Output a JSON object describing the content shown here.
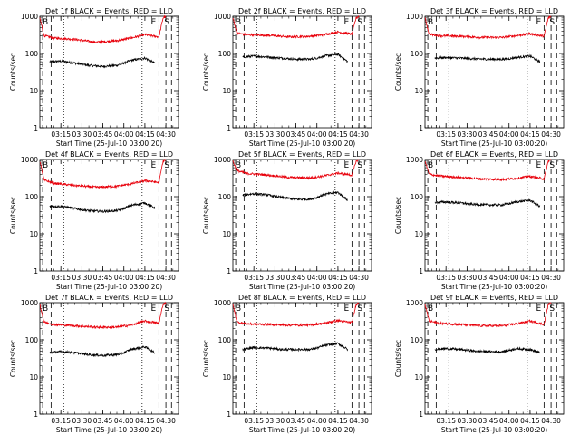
{
  "figure": {
    "ylabel": "Counts/sec",
    "xlabel": "Start Time (25-Jul-10 03:00:20)",
    "series_colors": {
      "events": "#000000",
      "lld": "#e8000b"
    },
    "marker_labels": [
      "B",
      "E",
      "S"
    ]
  },
  "chart_data": [
    {
      "type": "line",
      "title": "Det 1f BLACK = Events, RED = LLD",
      "xlabel": "Start Time (25-Jul-10 03:00:20)",
      "ylabel": "Counts/sec",
      "yscale": "log",
      "ylim": [
        1,
        1000
      ],
      "xlim": [
        "03:00",
        "04:39"
      ],
      "x_ticks": [
        "03:15",
        "03:30",
        "03:45",
        "04:00",
        "04:15",
        "04:30"
      ],
      "y_ticks": [
        "1",
        "10",
        "100",
        "1000"
      ],
      "series": [
        {
          "name": "Events",
          "color": "#000000",
          "x": [
            "03:07",
            "03:15",
            "03:25",
            "03:35",
            "03:45",
            "03:55",
            "04:00",
            "04:05",
            "04:15",
            "04:22"
          ],
          "values": [
            60,
            62,
            55,
            48,
            45,
            48,
            55,
            65,
            75,
            55
          ]
        },
        {
          "name": "LLD",
          "color": "#e8000b",
          "x": [
            "03:00",
            "03:03",
            "03:10",
            "03:25",
            "03:40",
            "03:55",
            "04:05",
            "04:15",
            "04:25",
            "04:28",
            "04:30"
          ],
          "values": [
            900,
            300,
            260,
            240,
            200,
            220,
            260,
            320,
            280,
            900,
            1000
          ]
        }
      ],
      "vlines_dashed": [
        "03:02",
        "03:08",
        "04:25",
        "04:30",
        "04:34"
      ],
      "vlines_dotted": [
        "03:17",
        "04:13"
      ]
    },
    {
      "type": "line",
      "title": "Det 2f BLACK = Events, RED = LLD",
      "xlabel": "Start Time (25-Jul-10 03:00:20)",
      "ylabel": "Counts/sec",
      "yscale": "log",
      "ylim": [
        1,
        1000
      ],
      "xlim": [
        "03:00",
        "04:39"
      ],
      "x_ticks": [
        "03:15",
        "03:30",
        "03:45",
        "04:00",
        "04:15",
        "04:30"
      ],
      "y_ticks": [
        "1",
        "10",
        "100",
        "1000"
      ],
      "series": [
        {
          "name": "Events",
          "color": "#000000",
          "x": [
            "03:07",
            "03:15",
            "03:25",
            "03:35",
            "03:45",
            "03:55",
            "04:00",
            "04:05",
            "04:15",
            "04:22"
          ],
          "values": [
            80,
            85,
            80,
            75,
            70,
            70,
            75,
            85,
            95,
            60
          ]
        },
        {
          "name": "LLD",
          "color": "#e8000b",
          "x": [
            "03:00",
            "03:03",
            "03:10",
            "03:25",
            "03:40",
            "03:55",
            "04:05",
            "04:15",
            "04:25",
            "04:28",
            "04:30"
          ],
          "values": [
            900,
            350,
            320,
            310,
            280,
            290,
            320,
            380,
            330,
            900,
            1000
          ]
        }
      ],
      "vlines_dashed": [
        "03:02",
        "03:08",
        "04:25",
        "04:30",
        "04:34"
      ],
      "vlines_dotted": [
        "03:17",
        "04:13"
      ]
    },
    {
      "type": "line",
      "title": "Det 3f BLACK = Events, RED = LLD",
      "xlabel": "Start Time (25-Jul-10 03:00:20)",
      "ylabel": "Counts/sec",
      "yscale": "log",
      "ylim": [
        1,
        1000
      ],
      "xlim": [
        "03:00",
        "04:39"
      ],
      "x_ticks": [
        "03:15",
        "03:30",
        "03:45",
        "04:00",
        "04:15",
        "04:30"
      ],
      "y_ticks": [
        "1",
        "10",
        "100",
        "1000"
      ],
      "series": [
        {
          "name": "Events",
          "color": "#000000",
          "x": [
            "03:07",
            "03:15",
            "03:25",
            "03:35",
            "03:45",
            "03:55",
            "04:00",
            "04:05",
            "04:15",
            "04:22"
          ],
          "values": [
            75,
            78,
            75,
            72,
            70,
            70,
            72,
            78,
            85,
            60
          ]
        },
        {
          "name": "LLD",
          "color": "#e8000b",
          "x": [
            "03:00",
            "03:03",
            "03:10",
            "03:25",
            "03:40",
            "03:55",
            "04:05",
            "04:15",
            "04:25",
            "04:28",
            "04:30"
          ],
          "values": [
            900,
            330,
            300,
            290,
            270,
            270,
            300,
            340,
            290,
            900,
            1000
          ]
        }
      ],
      "vlines_dashed": [
        "03:02",
        "03:08",
        "04:25",
        "04:30",
        "04:34"
      ],
      "vlines_dotted": [
        "03:17",
        "04:13"
      ]
    },
    {
      "type": "line",
      "title": "Det 4f BLACK = Events, RED = LLD",
      "xlabel": "Start Time (25-Jul-10 03:00:20)",
      "ylabel": "Counts/sec",
      "yscale": "log",
      "ylim": [
        1,
        1000
      ],
      "xlim": [
        "03:00",
        "04:39"
      ],
      "x_ticks": [
        "03:15",
        "03:30",
        "03:45",
        "04:00",
        "04:15",
        "04:30"
      ],
      "y_ticks": [
        "1",
        "10",
        "100",
        "1000"
      ],
      "series": [
        {
          "name": "Events",
          "color": "#000000",
          "x": [
            "03:07",
            "03:15",
            "03:25",
            "03:35",
            "03:45",
            "03:55",
            "04:00",
            "04:05",
            "04:15",
            "04:22"
          ],
          "values": [
            55,
            55,
            48,
            42,
            40,
            42,
            48,
            58,
            68,
            50
          ]
        },
        {
          "name": "LLD",
          "color": "#e8000b",
          "x": [
            "03:00",
            "03:03",
            "03:10",
            "03:25",
            "03:40",
            "03:55",
            "04:05",
            "04:15",
            "04:25",
            "04:28",
            "04:30"
          ],
          "values": [
            900,
            280,
            230,
            200,
            180,
            190,
            220,
            270,
            240,
            900,
            1000
          ]
        }
      ],
      "vlines_dashed": [
        "03:02",
        "03:08",
        "04:25",
        "04:30",
        "04:34"
      ],
      "vlines_dotted": [
        "03:17",
        "04:13"
      ]
    },
    {
      "type": "line",
      "title": "Det 5f BLACK = Events, RED = LLD",
      "xlabel": "Start Time (25-Jul-10 03:00:20)",
      "ylabel": "Counts/sec",
      "yscale": "log",
      "ylim": [
        1,
        1000
      ],
      "xlim": [
        "03:00",
        "04:39"
      ],
      "x_ticks": [
        "03:15",
        "03:30",
        "03:45",
        "04:00",
        "04:15",
        "04:30"
      ],
      "y_ticks": [
        "1",
        "10",
        "100",
        "1000"
      ],
      "series": [
        {
          "name": "Events",
          "color": "#000000",
          "x": [
            "03:07",
            "03:15",
            "03:25",
            "03:35",
            "03:45",
            "03:55",
            "04:00",
            "04:05",
            "04:15",
            "04:22"
          ],
          "values": [
            110,
            120,
            110,
            95,
            85,
            85,
            95,
            115,
            130,
            80
          ]
        },
        {
          "name": "LLD",
          "color": "#e8000b",
          "x": [
            "03:00",
            "03:03",
            "03:10",
            "03:25",
            "03:40",
            "03:55",
            "04:05",
            "04:15",
            "04:25",
            "04:28",
            "04:30"
          ],
          "values": [
            900,
            500,
            420,
            380,
            330,
            320,
            360,
            430,
            380,
            900,
            1000
          ]
        }
      ],
      "vlines_dashed": [
        "03:02",
        "03:08",
        "04:25",
        "04:30",
        "04:34"
      ],
      "vlines_dotted": [
        "03:17",
        "04:13"
      ]
    },
    {
      "type": "line",
      "title": "Det 6f BLACK = Events, RED = LLD",
      "xlabel": "Start Time (25-Jul-10 03:00:20)",
      "ylabel": "Counts/sec",
      "yscale": "log",
      "ylim": [
        1,
        1000
      ],
      "xlim": [
        "03:00",
        "04:39"
      ],
      "x_ticks": [
        "03:15",
        "03:30",
        "03:45",
        "04:00",
        "04:15",
        "04:30"
      ],
      "y_ticks": [
        "1",
        "10",
        "100",
        "1000"
      ],
      "series": [
        {
          "name": "Events",
          "color": "#000000",
          "x": [
            "03:07",
            "03:15",
            "03:25",
            "03:35",
            "03:45",
            "03:55",
            "04:00",
            "04:05",
            "04:15",
            "04:22"
          ],
          "values": [
            70,
            72,
            68,
            62,
            60,
            60,
            65,
            72,
            80,
            55
          ]
        },
        {
          "name": "LLD",
          "color": "#e8000b",
          "x": [
            "03:00",
            "03:03",
            "03:10",
            "03:25",
            "03:40",
            "03:55",
            "04:05",
            "04:15",
            "04:25",
            "04:28",
            "04:30"
          ],
          "values": [
            900,
            400,
            360,
            330,
            300,
            290,
            310,
            350,
            300,
            900,
            1000
          ]
        }
      ],
      "vlines_dashed": [
        "03:02",
        "03:08",
        "04:25",
        "04:30",
        "04:34"
      ],
      "vlines_dotted": [
        "03:17",
        "04:13"
      ]
    },
    {
      "type": "line",
      "title": "Det 7f BLACK = Events, RED = LLD",
      "xlabel": "Start Time (25-Jul-10 03:00:20)",
      "ylabel": "Counts/sec",
      "yscale": "log",
      "ylim": [
        1,
        1000
      ],
      "xlim": [
        "03:00",
        "04:39"
      ],
      "x_ticks": [
        "03:15",
        "03:30",
        "03:45",
        "04:00",
        "04:15",
        "04:30"
      ],
      "y_ticks": [
        "1",
        "10",
        "100",
        "1000"
      ],
      "series": [
        {
          "name": "Events",
          "color": "#000000",
          "x": [
            "03:07",
            "03:15",
            "03:25",
            "03:35",
            "03:45",
            "03:55",
            "04:00",
            "04:05",
            "04:15",
            "04:22"
          ],
          "values": [
            45,
            48,
            45,
            40,
            38,
            40,
            45,
            55,
            65,
            45
          ]
        },
        {
          "name": "LLD",
          "color": "#e8000b",
          "x": [
            "03:00",
            "03:03",
            "03:10",
            "03:25",
            "03:40",
            "03:55",
            "04:05",
            "04:15",
            "04:25",
            "04:28",
            "04:30"
          ],
          "values": [
            900,
            300,
            260,
            240,
            220,
            220,
            250,
            320,
            280,
            900,
            1000
          ]
        }
      ],
      "vlines_dashed": [
        "03:02",
        "03:08",
        "04:25",
        "04:30",
        "04:34"
      ],
      "vlines_dotted": [
        "03:17",
        "04:13"
      ]
    },
    {
      "type": "line",
      "title": "Det 8f BLACK = Events, RED = LLD",
      "xlabel": "Start Time (25-Jul-10 03:00:20)",
      "ylabel": "Counts/sec",
      "yscale": "log",
      "ylim": [
        1,
        1000
      ],
      "xlim": [
        "03:00",
        "04:39"
      ],
      "x_ticks": [
        "03:15",
        "03:30",
        "03:45",
        "04:00",
        "04:15",
        "04:30"
      ],
      "y_ticks": [
        "1",
        "10",
        "100",
        "1000"
      ],
      "series": [
        {
          "name": "Events",
          "color": "#000000",
          "x": [
            "03:07",
            "03:15",
            "03:25",
            "03:35",
            "03:45",
            "03:55",
            "04:00",
            "04:05",
            "04:15",
            "04:22"
          ],
          "values": [
            55,
            62,
            60,
            55,
            55,
            55,
            60,
            70,
            80,
            55
          ]
        },
        {
          "name": "LLD",
          "color": "#e8000b",
          "x": [
            "03:00",
            "03:03",
            "03:10",
            "03:25",
            "03:40",
            "03:55",
            "04:05",
            "04:15",
            "04:25",
            "04:28",
            "04:30"
          ],
          "values": [
            900,
            300,
            270,
            260,
            250,
            250,
            280,
            330,
            290,
            900,
            1000
          ]
        }
      ],
      "vlines_dashed": [
        "03:02",
        "03:08",
        "04:25",
        "04:30",
        "04:34"
      ],
      "vlines_dotted": [
        "03:17",
        "04:13"
      ]
    },
    {
      "type": "line",
      "title": "Det 9f BLACK = Events, RED = LLD",
      "xlabel": "Start Time (25-Jul-10 03:00:20)",
      "ylabel": "Counts/sec",
      "yscale": "log",
      "ylim": [
        1,
        1000
      ],
      "xlim": [
        "03:00",
        "04:39"
      ],
      "x_ticks": [
        "03:15",
        "03:30",
        "03:45",
        "04:00",
        "04:15",
        "04:30"
      ],
      "y_ticks": [
        "1",
        "10",
        "100",
        "1000"
      ],
      "series": [
        {
          "name": "Events",
          "color": "#000000",
          "x": [
            "03:07",
            "03:15",
            "03:25",
            "03:35",
            "03:45",
            "03:55",
            "04:00",
            "04:05",
            "04:15",
            "04:22"
          ],
          "values": [
            55,
            58,
            55,
            50,
            48,
            48,
            52,
            58,
            55,
            45
          ]
        },
        {
          "name": "LLD",
          "color": "#e8000b",
          "x": [
            "03:00",
            "03:03",
            "03:10",
            "03:25",
            "03:40",
            "03:55",
            "04:05",
            "04:15",
            "04:25",
            "04:28",
            "04:30"
          ],
          "values": [
            900,
            320,
            280,
            260,
            240,
            240,
            270,
            320,
            260,
            900,
            1000
          ]
        }
      ],
      "vlines_dashed": [
        "03:02",
        "03:08",
        "04:25",
        "04:30",
        "04:34"
      ],
      "vlines_dotted": [
        "03:17",
        "04:13"
      ]
    }
  ]
}
